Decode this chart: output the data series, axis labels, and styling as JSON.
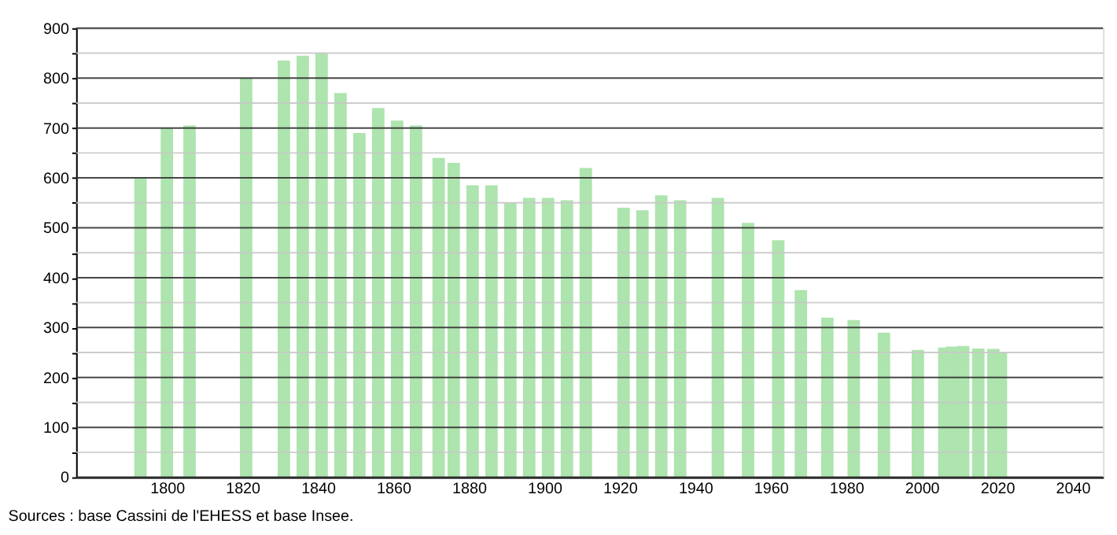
{
  "chart_data": {
    "type": "bar",
    "x": [
      1793,
      1800,
      1806,
      1821,
      1831,
      1836,
      1841,
      1846,
      1851,
      1856,
      1861,
      1866,
      1872,
      1876,
      1881,
      1886,
      1891,
      1896,
      1901,
      1906,
      1911,
      1921,
      1926,
      1931,
      1936,
      1946,
      1954,
      1962,
      1968,
      1975,
      1982,
      1990,
      1999,
      2006,
      2008,
      2011,
      2015,
      2019,
      2021
    ],
    "values": [
      600,
      700,
      705,
      800,
      835,
      845,
      850,
      770,
      690,
      740,
      715,
      705,
      640,
      630,
      585,
      585,
      550,
      560,
      560,
      555,
      620,
      540,
      535,
      565,
      555,
      560,
      510,
      475,
      375,
      320,
      315,
      290,
      255,
      260,
      262,
      263,
      258,
      257,
      250
    ],
    "color": "#aee4ae",
    "xlim": [
      1778,
      2046
    ],
    "xticks": [
      1800,
      1820,
      1840,
      1860,
      1880,
      1900,
      1920,
      1940,
      1960,
      1980,
      2000,
      2020,
      2040
    ],
    "ylim": [
      0,
      900
    ],
    "yticks": [
      0,
      {
        "value": 50,
        "label": null
      },
      100,
      {
        "value": 150,
        "label": null
      },
      200,
      {
        "value": 250,
        "label": null
      },
      300,
      {
        "value": 350,
        "label": null
      },
      400,
      {
        "value": 450,
        "label": null
      },
      500,
      {
        "value": 550,
        "label": null
      },
      600,
      {
        "value": 650,
        "label": null
      },
      700,
      {
        "value": 750,
        "label": null
      },
      800,
      {
        "value": 850,
        "label": null
      },
      900
    ],
    "grid": "y",
    "annotations": [
      "Sources : base Cassini de l'EHESS et base Insee."
    ]
  }
}
